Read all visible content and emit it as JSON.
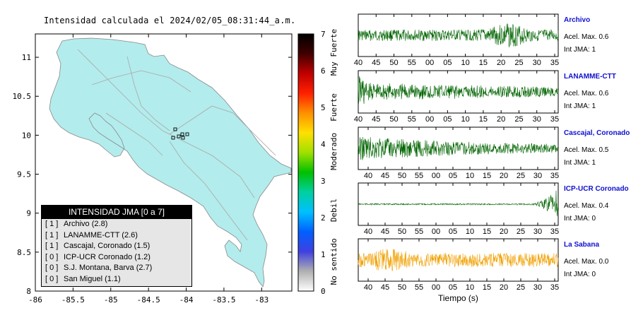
{
  "map": {
    "title": "Intensidad calculada el 2024/02/05_08:31:44_a.m.",
    "lon_ticks": [
      "-86",
      "-85.5",
      "-85",
      "-84.5",
      "-84",
      "-83.5",
      "-83"
    ],
    "lat_ticks": [
      "11",
      "10.5",
      "10",
      "9.5",
      "9",
      "8.5",
      "8"
    ]
  },
  "colorbar": {
    "ticks": [
      "7",
      "6",
      "5",
      "4",
      "3",
      "2",
      "1",
      "0"
    ],
    "categories": [
      "Muy Fuerte",
      "Fuerte",
      "Moderado",
      "Debil",
      "No sentido"
    ],
    "colors": [
      "#ffffff",
      "#b0b0b0",
      "#4040e0",
      "#0060ff",
      "#00c0ff",
      "#00d0a0",
      "#00c000",
      "#a0e000",
      "#ffe000",
      "#ff9000",
      "#ff2000",
      "#c00000",
      "#400000",
      "#000000"
    ]
  },
  "legend": {
    "header": "INTENSIDAD JMA [0 a 7]",
    "rows": [
      {
        "jma": "[ 1 ]",
        "text": "Archivo (2.8)"
      },
      {
        "jma": "[ 1 ]",
        "text": "LANAMME-CTT (2.6)"
      },
      {
        "jma": "[ 1 ]",
        "text": "Cascajal, Coronado (1.5)"
      },
      {
        "jma": "[ 0 ]",
        "text": "ICP-UCR Coronado (1.2)"
      },
      {
        "jma": "[ 0 ]",
        "text": "S.J. Montana, Barva (2.7)"
      },
      {
        "jma": "[ 0 ]",
        "text": "San Miguel (1.1)"
      }
    ]
  },
  "traces": [
    {
      "name": "Archivo",
      "acel": "Acel. Max. 0.6",
      "int": "Int JMA: 1",
      "color": "#006400",
      "ticks": [
        "40",
        "45",
        "50",
        "55",
        "00",
        "05",
        "10",
        "15",
        "20",
        "25",
        "30",
        "35"
      ]
    },
    {
      "name": "LANAMME-CTT",
      "acel": "Acel. Max. 0.6",
      "int": "Int JMA: 1",
      "color": "#006400",
      "ticks": [
        "40",
        "45",
        "50",
        "55",
        "00",
        "05",
        "10",
        "15",
        "20",
        "25",
        "30",
        "35"
      ]
    },
    {
      "name": "Cascajal, Coronado",
      "acel": "Acel. Max. 0.5",
      "int": "Int JMA: 1",
      "color": "#006400",
      "ticks": [
        "40",
        "45",
        "50",
        "55",
        "00",
        "05",
        "10",
        "15",
        "20",
        "25",
        "30",
        "35"
      ]
    },
    {
      "name": "ICP-UCR Coronado",
      "acel": "Acel. Max. 0.4",
      "int": "Int JMA: 0",
      "color": "#006400",
      "ticks": [
        "40",
        "45",
        "50",
        "55",
        "00",
        "05",
        "10",
        "15",
        "20",
        "25",
        "30",
        "35"
      ]
    },
    {
      "name": "La Sabana",
      "acel": "Acel. Max. 0.0",
      "int": "Int JMA: 0",
      "color": "#f0a000",
      "ticks": [
        "40",
        "45",
        "50",
        "55",
        "00",
        "05",
        "10",
        "15",
        "20",
        "25",
        "30",
        "35"
      ]
    }
  ],
  "xlabel": "Tiempo (s)",
  "chart_data": [
    {
      "type": "heatmap",
      "title": "Intensidad calculada el 2024/02/05_08:31:44_a.m.",
      "xlim": [
        -86,
        -82.6
      ],
      "ylim": [
        8,
        11.3
      ],
      "colorbar_range": [
        0,
        7
      ],
      "stations": [
        {
          "name": "Archivo",
          "jma": 1,
          "value": 2.8
        },
        {
          "name": "LANAMME-CTT",
          "jma": 1,
          "value": 2.6
        },
        {
          "name": "Cascajal, Coronado",
          "jma": 1,
          "value": 1.5
        },
        {
          "name": "ICP-UCR Coronado",
          "jma": 0,
          "value": 1.2
        },
        {
          "name": "S.J. Montana, Barva",
          "jma": 0,
          "value": 2.7
        },
        {
          "name": "San Miguel",
          "jma": 0,
          "value": 1.1
        }
      ]
    },
    {
      "type": "line",
      "xlabel": "Tiempo (s)",
      "series": [
        {
          "name": "Archivo",
          "acel_max": 0.6,
          "jma": 1
        },
        {
          "name": "LANAMME-CTT",
          "acel_max": 0.6,
          "jma": 1
        },
        {
          "name": "Cascajal, Coronado",
          "acel_max": 0.5,
          "jma": 1
        },
        {
          "name": "ICP-UCR Coronado",
          "acel_max": 0.4,
          "jma": 0
        },
        {
          "name": "La Sabana",
          "acel_max": 0.0,
          "jma": 0
        }
      ]
    }
  ]
}
